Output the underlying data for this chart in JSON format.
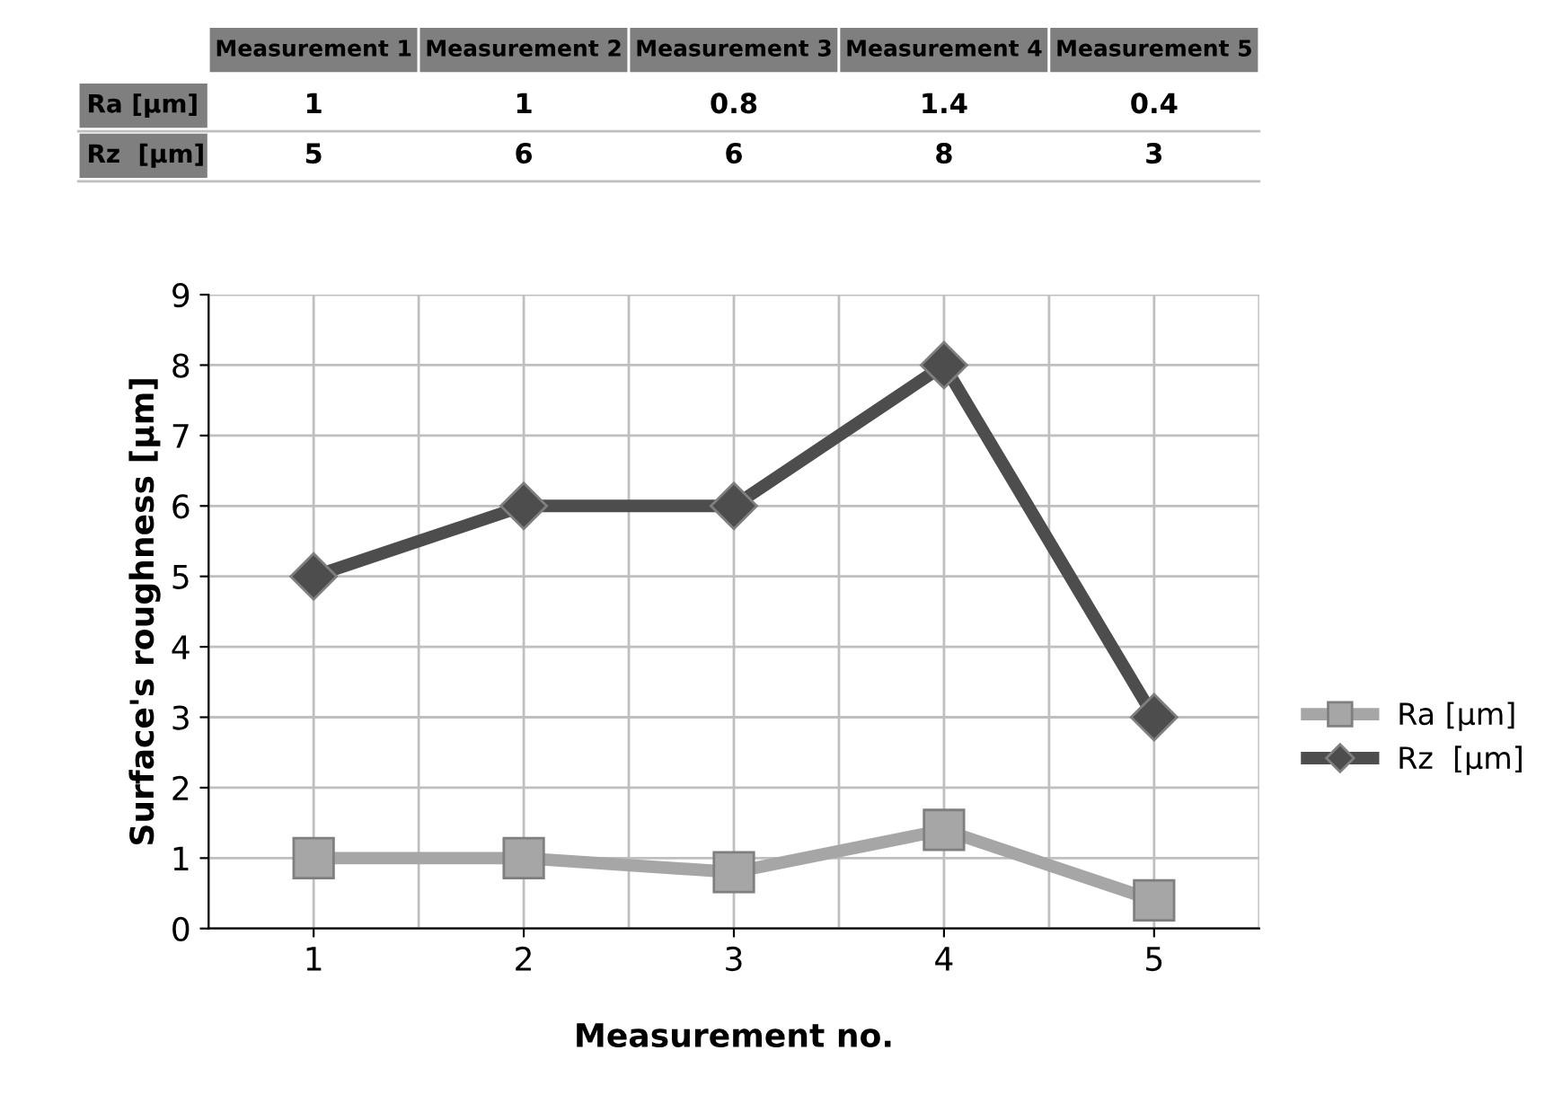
{
  "chart_data": {
    "type": "line",
    "xlabel": "Measurement no.",
    "ylabel": "Surface's roughness [µm]",
    "categories": [
      "1",
      "2",
      "3",
      "4",
      "5"
    ],
    "series": [
      {
        "name": "Ra [µm]",
        "color": "#a6a6a6",
        "marker": "square",
        "values": [
          1,
          1,
          0.8,
          1.4,
          0.4
        ],
        "value_labels": [
          "1",
          "1",
          "0.8",
          "1.4",
          "0.4"
        ]
      },
      {
        "name": "Rz  [µm]",
        "color": "#4d4d4d",
        "marker": "diamond",
        "values": [
          5,
          6,
          6,
          8,
          3
        ],
        "value_labels": [
          "5",
          "6",
          "6",
          "8",
          "3"
        ]
      }
    ],
    "annotations": [
      "Measurement 1",
      "Measurement 2",
      "Measurement 3",
      "Measurement 4",
      "Measurement 5"
    ],
    "ylim": [
      0,
      9
    ],
    "yticks": [
      0,
      1,
      2,
      3,
      4,
      5,
      6,
      7,
      8,
      9
    ],
    "grid": true,
    "legend": "right",
    "line_style": "solid"
  }
}
